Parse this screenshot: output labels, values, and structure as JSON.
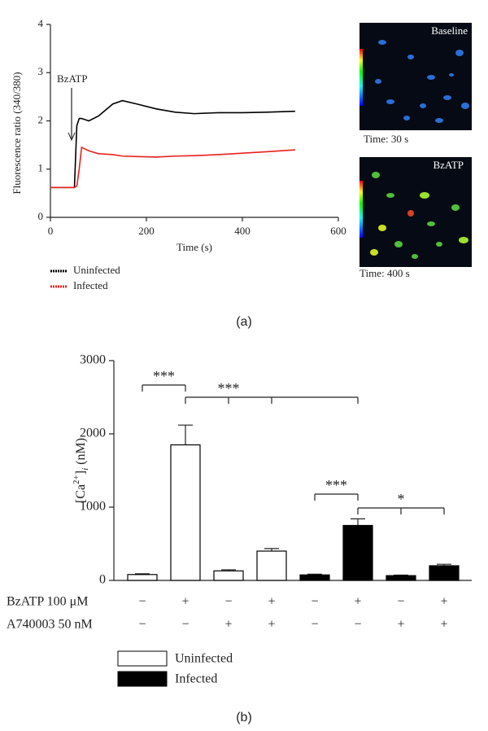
{
  "chart_data": [
    {
      "type": "line",
      "xlabel": "Time (s)",
      "ylabel": "Fluorescence ratio (340/380)",
      "x": [
        0,
        50,
        55,
        60,
        65,
        80,
        100,
        130,
        150,
        180,
        220,
        260,
        300,
        350,
        400,
        450,
        510
      ],
      "series": [
        {
          "name": "Uninfected",
          "color": "#000000",
          "values": [
            0.62,
            0.62,
            1.9,
            2.05,
            2.05,
            2.0,
            2.1,
            2.35,
            2.42,
            2.35,
            2.25,
            2.18,
            2.15,
            2.17,
            2.17,
            2.18,
            2.2
          ]
        },
        {
          "name": "Infected",
          "color": "#e8201c",
          "values": [
            0.62,
            0.62,
            0.65,
            1.0,
            1.45,
            1.38,
            1.32,
            1.3,
            1.27,
            1.26,
            1.25,
            1.27,
            1.28,
            1.3,
            1.33,
            1.36,
            1.4
          ]
        }
      ],
      "xlim": [
        0,
        600
      ],
      "xticks": [
        0,
        200,
        400,
        600
      ],
      "ylim": [
        0,
        4
      ],
      "yticks": [
        0,
        1,
        2,
        3,
        4
      ],
      "annotation": "BzATP",
      "images": [
        {
          "label": "Baseline",
          "caption": "Time: 30 s"
        },
        {
          "label": "BzATP",
          "caption": "Time: 400 s"
        }
      ],
      "panel": "(a)"
    },
    {
      "type": "bar",
      "ylabel_parts": [
        "[Ca",
        "2+",
        "]",
        "i",
        " (nM)"
      ],
      "series": [
        {
          "name": "Uninfected",
          "color": "#ffffff",
          "values": [
            80,
            1850,
            130,
            400,
            null,
            null,
            null,
            null
          ],
          "errors": [
            10,
            270,
            15,
            35,
            null,
            null,
            null,
            null
          ]
        },
        {
          "name": "Infected",
          "color": "#000000",
          "values": [
            null,
            null,
            null,
            null,
            75,
            750,
            65,
            200
          ],
          "errors": [
            null,
            null,
            null,
            null,
            10,
            90,
            8,
            20
          ]
        }
      ],
      "ylim": [
        0,
        3000
      ],
      "yticks": [
        0,
        1000,
        2000,
        3000
      ],
      "condition_rows": [
        {
          "label": "BzATP 100 μM",
          "signs": [
            "−",
            "+",
            "−",
            "+",
            "−",
            "+",
            "−",
            "+"
          ]
        },
        {
          "label": "A740003 50 nM",
          "signs": [
            "−",
            "−",
            "+",
            "+",
            "−",
            "−",
            "+",
            "+"
          ]
        }
      ],
      "significance": [
        {
          "label": "***"
        },
        {
          "label": "***"
        },
        {
          "label": "***"
        },
        {
          "label": "*"
        }
      ],
      "panel": "(b)"
    }
  ]
}
